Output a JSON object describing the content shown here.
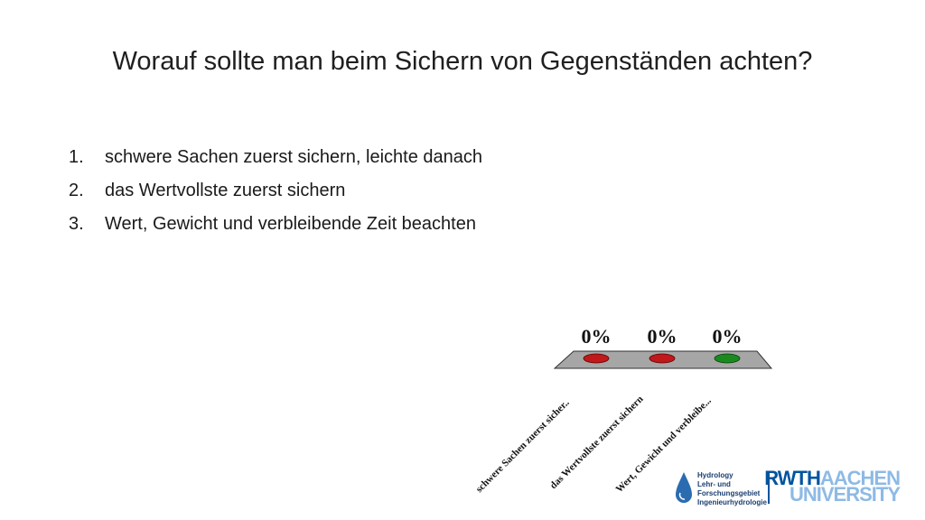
{
  "slide": {
    "title": "Worauf sollte man beim Sichern von Gegenständen achten?",
    "answers": [
      {
        "number": "1.",
        "text": "schwere Sachen zuerst sichern, leichte danach"
      },
      {
        "number": "2.",
        "text": "das Wertvollste zuerst sichern"
      },
      {
        "number": "3.",
        "text": "Wert, Gewicht und verbleibende Zeit beachten"
      }
    ]
  },
  "poll": {
    "percentages": [
      "0%",
      "0%",
      "0%"
    ],
    "labels": [
      "schwere Sachen zuerst sicher..",
      "das Wertvollste zuerst sichern",
      "Wert, Gewicht und verbleibe..."
    ],
    "indicator_colors": [
      "#c0181b",
      "#c0181b",
      "#1a8a1f"
    ],
    "platform_color": "#a6a6a6"
  },
  "logos": {
    "hydro_text": "Hydrology\nLehr- und\nForschungsgebiet\nIngenieurhydrologie",
    "rwth_strong": "RWTH",
    "rwth_light": "AACHEN",
    "rwth_line2": "UNIVERSITY",
    "rwth_color": "#00549f",
    "rwth_light_color": "#8ebae5"
  }
}
